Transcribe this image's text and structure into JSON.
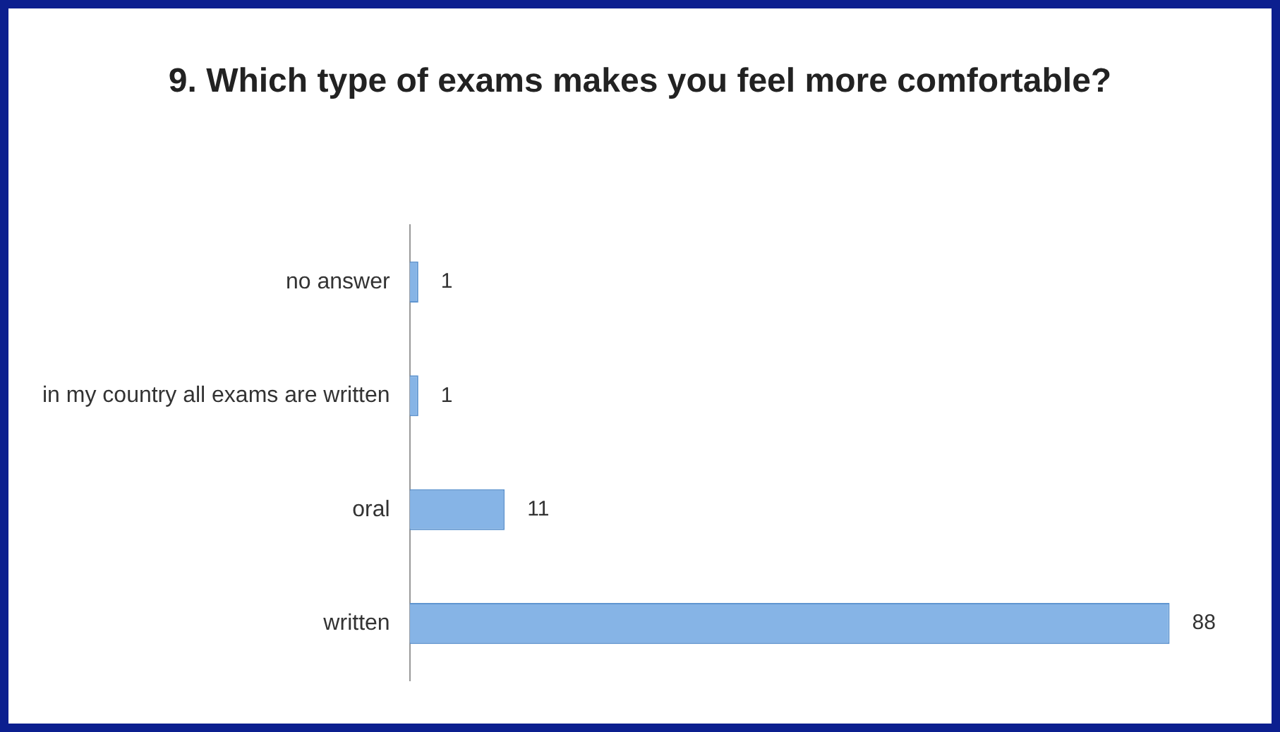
{
  "chart_data": {
    "type": "bar",
    "orientation": "horizontal",
    "title": "9. Which type of exams makes you feel more comfortable?",
    "categories": [
      "no answer",
      "in my country all exams are written",
      "oral",
      "written"
    ],
    "values": [
      1,
      1,
      11,
      88
    ],
    "color": "#86b4e6",
    "data_labels": true,
    "grid": false,
    "legend": false
  }
}
